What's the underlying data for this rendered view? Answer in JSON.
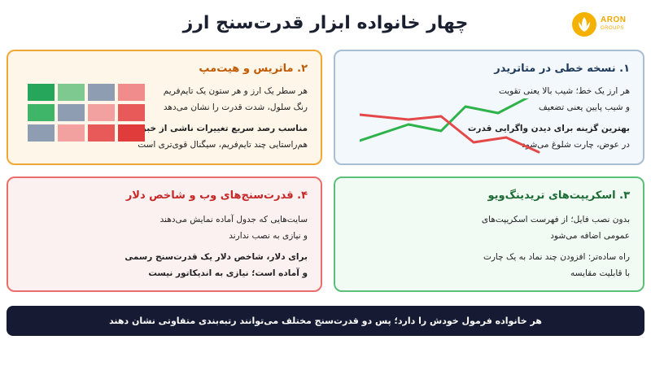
{
  "title": "چهار خانواده ابزار قدرت‌سنج ارز",
  "logo": {
    "name": "ARON",
    "sub": "GROUPS"
  },
  "cards": {
    "c1": {
      "heading": "۱. نسخه خطی در متاتریدر",
      "lines": [
        "هر ارز یک خط؛ شیب بالا یعنی تقویت",
        "و شیب پایین یعنی تضعیف"
      ],
      "bold": "بهترین گزینه برای دیدن واگرایی قدرت",
      "tail": "در عوض، چارت شلوغ می‌شود",
      "color": "#1f3a5a"
    },
    "c2": {
      "heading": "۲. ماتریس و هیت‌مپ",
      "lines": [
        "هر سطر یک ارز و هر ستون یک تایم‌فریم",
        "رنگ سلول، شدت قدرت را نشان می‌دهد"
      ],
      "bold": "مناسب رصد سریع تغییرات ناشی از خبر",
      "tail": "هم‌راستایی چند تایم‌فریم، سیگنال قوی‌تری است",
      "color": "#c15a00"
    },
    "c3": {
      "heading": "۳. اسکریپت‌های تریدینگ‌ویو",
      "lines": [
        "بدون نصب فایل؛ از فهرست اسکریپت‌های",
        "عمومی اضافه می‌شود"
      ],
      "lines2": [
        "راه ساده‌تر: افزودن چند نماد به یک چارت",
        "با قابلیت مقایسه"
      ],
      "color": "#1c6b34"
    },
    "c4": {
      "heading": "۴. قدرت‌سنج‌های وب و شاخص دلار",
      "lines": [
        "سایت‌هایی که جدول آماده نمایش می‌دهند",
        "و نیازی به نصب ندارند"
      ],
      "bold": "برای دلار، شاخص دلار یک قدرت‌سنج رسمی",
      "tail": "و آماده است؛ نیازی به اندیکاتور نیست",
      "color": "#c62828"
    }
  },
  "footer": "هر خانواده فرمول خودش را دارد؛ پس دو قدرت‌سنج مختلف می‌توانند رتبه‌بندی متفاوتی نشان دهند",
  "heatmap_colors": [
    [
      "#26a65b",
      "#7dc98f",
      "#8f9db2",
      "#f08c8c"
    ],
    [
      "#3fb56a",
      "#8f9db2",
      "#f2a0a0",
      "#e85a5a"
    ],
    [
      "#8f9db2",
      "#f2a0a0",
      "#e85a5a",
      "#e03c3c"
    ]
  ],
  "colors": {
    "green_line": "#2db34a",
    "red_line": "#e54848"
  }
}
